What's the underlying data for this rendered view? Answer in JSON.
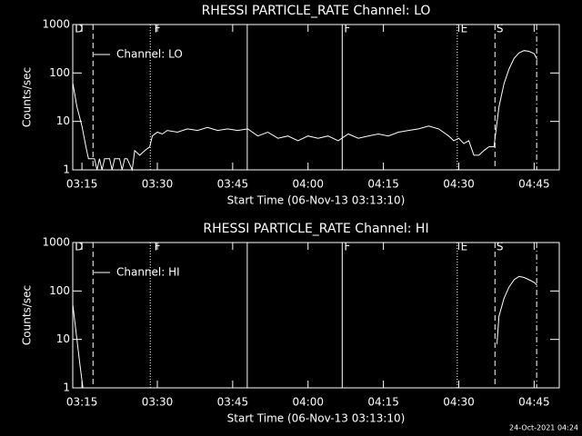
{
  "chart_data": [
    {
      "type": "line",
      "title": "RHESSI PARTICLE_RATE Channel: LO",
      "x_label": "Start Time (06-Nov-13 03:13:10)",
      "y_label": "Counts/sec",
      "log_y": true,
      "ylim": [
        1,
        1000
      ],
      "yticks": [
        1,
        10,
        100,
        1000
      ],
      "xlim": [
        193.17,
        290
      ],
      "xticks": [
        {
          "value": 195,
          "label": "03:15"
        },
        {
          "value": 210,
          "label": "03:30"
        },
        {
          "value": 225,
          "label": "03:45"
        },
        {
          "value": 240,
          "label": "04:00"
        },
        {
          "value": 255,
          "label": "04:15"
        },
        {
          "value": 270,
          "label": "04:30"
        },
        {
          "value": 285,
          "label": "04:45"
        }
      ],
      "x": [
        193.2,
        194,
        195,
        195.8,
        196.3,
        197,
        197.5,
        198,
        198.5,
        199,
        199.5,
        200.5,
        201,
        201.5,
        202.5,
        203,
        203.5,
        204,
        205,
        205.5,
        206.5,
        207.5,
        208.5,
        209,
        210,
        211,
        212,
        214,
        216,
        218,
        220,
        222,
        224,
        226,
        228,
        230,
        232,
        234,
        236,
        238,
        240,
        242,
        244,
        246,
        248,
        250,
        252,
        254,
        256,
        258,
        260,
        262,
        264,
        266,
        268,
        269,
        270,
        271,
        272,
        273,
        274,
        275,
        276,
        277,
        278,
        279,
        280,
        281,
        282,
        283,
        284,
        285,
        285.6
      ],
      "series": [
        {
          "name": "Channel: LO",
          "color": "#ffffff",
          "values": [
            60,
            20,
            8,
            3,
            1.7,
            1.7,
            1.7,
            1,
            1.7,
            1,
            1.7,
            1.7,
            1,
            1.7,
            1.7,
            1,
            1.7,
            1.7,
            1,
            2.5,
            2,
            2.5,
            3,
            5,
            6,
            5.5,
            6.5,
            6,
            7,
            6.5,
            7.5,
            6.5,
            7,
            6.5,
            7,
            5,
            6,
            4.5,
            5,
            4,
            5,
            4.5,
            5,
            4,
            5.5,
            4.5,
            5,
            5.5,
            5,
            6,
            6.5,
            7,
            8,
            7,
            5,
            4,
            4.5,
            3.5,
            4,
            2,
            2,
            2.5,
            3,
            3,
            20,
            60,
            120,
            200,
            260,
            290,
            280,
            250,
            190
          ]
        }
      ],
      "vlines": [
        {
          "x": 197.2,
          "style": "dashed"
        },
        {
          "x": 208.6,
          "style": "dotted"
        },
        {
          "x": 227.9,
          "style": "solid"
        },
        {
          "x": 246.8,
          "style": "solid"
        },
        {
          "x": 269.7,
          "style": "dotted"
        },
        {
          "x": 277.2,
          "style": "dashed"
        },
        {
          "x": 285.5,
          "style": "dashdot"
        }
      ],
      "annotations": [
        {
          "text": "D",
          "x": 193.4
        },
        {
          "text": "F",
          "x": 209.2
        },
        {
          "text": "F",
          "x": 247.0
        },
        {
          "text": "E",
          "x": 270.2
        },
        {
          "text": "S",
          "x": 277.3
        }
      ]
    },
    {
      "type": "line",
      "title": "RHESSI PARTICLE_RATE Channel: HI",
      "x_label": "Start Time (06-Nov-13 03:13:10)",
      "y_label": "Counts/sec",
      "log_y": true,
      "ylim": [
        1,
        1000
      ],
      "yticks": [
        1,
        10,
        100,
        1000
      ],
      "xlim": [
        193.17,
        290
      ],
      "xticks": [
        {
          "value": 195,
          "label": "03:15"
        },
        {
          "value": 210,
          "label": "03:30"
        },
        {
          "value": 225,
          "label": "03:45"
        },
        {
          "value": 240,
          "label": "04:00"
        },
        {
          "value": 255,
          "label": "04:15"
        },
        {
          "value": 270,
          "label": "04:30"
        },
        {
          "value": 285,
          "label": "04:45"
        }
      ],
      "x": [
        193.2,
        194,
        194.6,
        195.2,
        277.2,
        277.6,
        278,
        279,
        280,
        281,
        282,
        283,
        284,
        285,
        285.6
      ],
      "series": [
        {
          "name": "Channel: HI",
          "color": "#ffffff",
          "values": [
            50,
            10,
            3,
            1,
            null,
            8,
            30,
            70,
            120,
            170,
            200,
            190,
            170,
            150,
            130
          ]
        }
      ],
      "vlines": [
        {
          "x": 197.2,
          "style": "dashed"
        },
        {
          "x": 208.6,
          "style": "dotted"
        },
        {
          "x": 227.9,
          "style": "solid"
        },
        {
          "x": 246.8,
          "style": "solid"
        },
        {
          "x": 269.7,
          "style": "dotted"
        },
        {
          "x": 277.2,
          "style": "dashed"
        },
        {
          "x": 285.5,
          "style": "dashdot"
        }
      ],
      "annotations": [
        {
          "text": "D",
          "x": 193.4
        },
        {
          "text": "F",
          "x": 209.2
        },
        {
          "text": "F",
          "x": 247.0
        },
        {
          "text": "E",
          "x": 270.2
        },
        {
          "text": "S",
          "x": 277.3
        }
      ]
    }
  ],
  "footer": "24-Oct-2021 04:24"
}
